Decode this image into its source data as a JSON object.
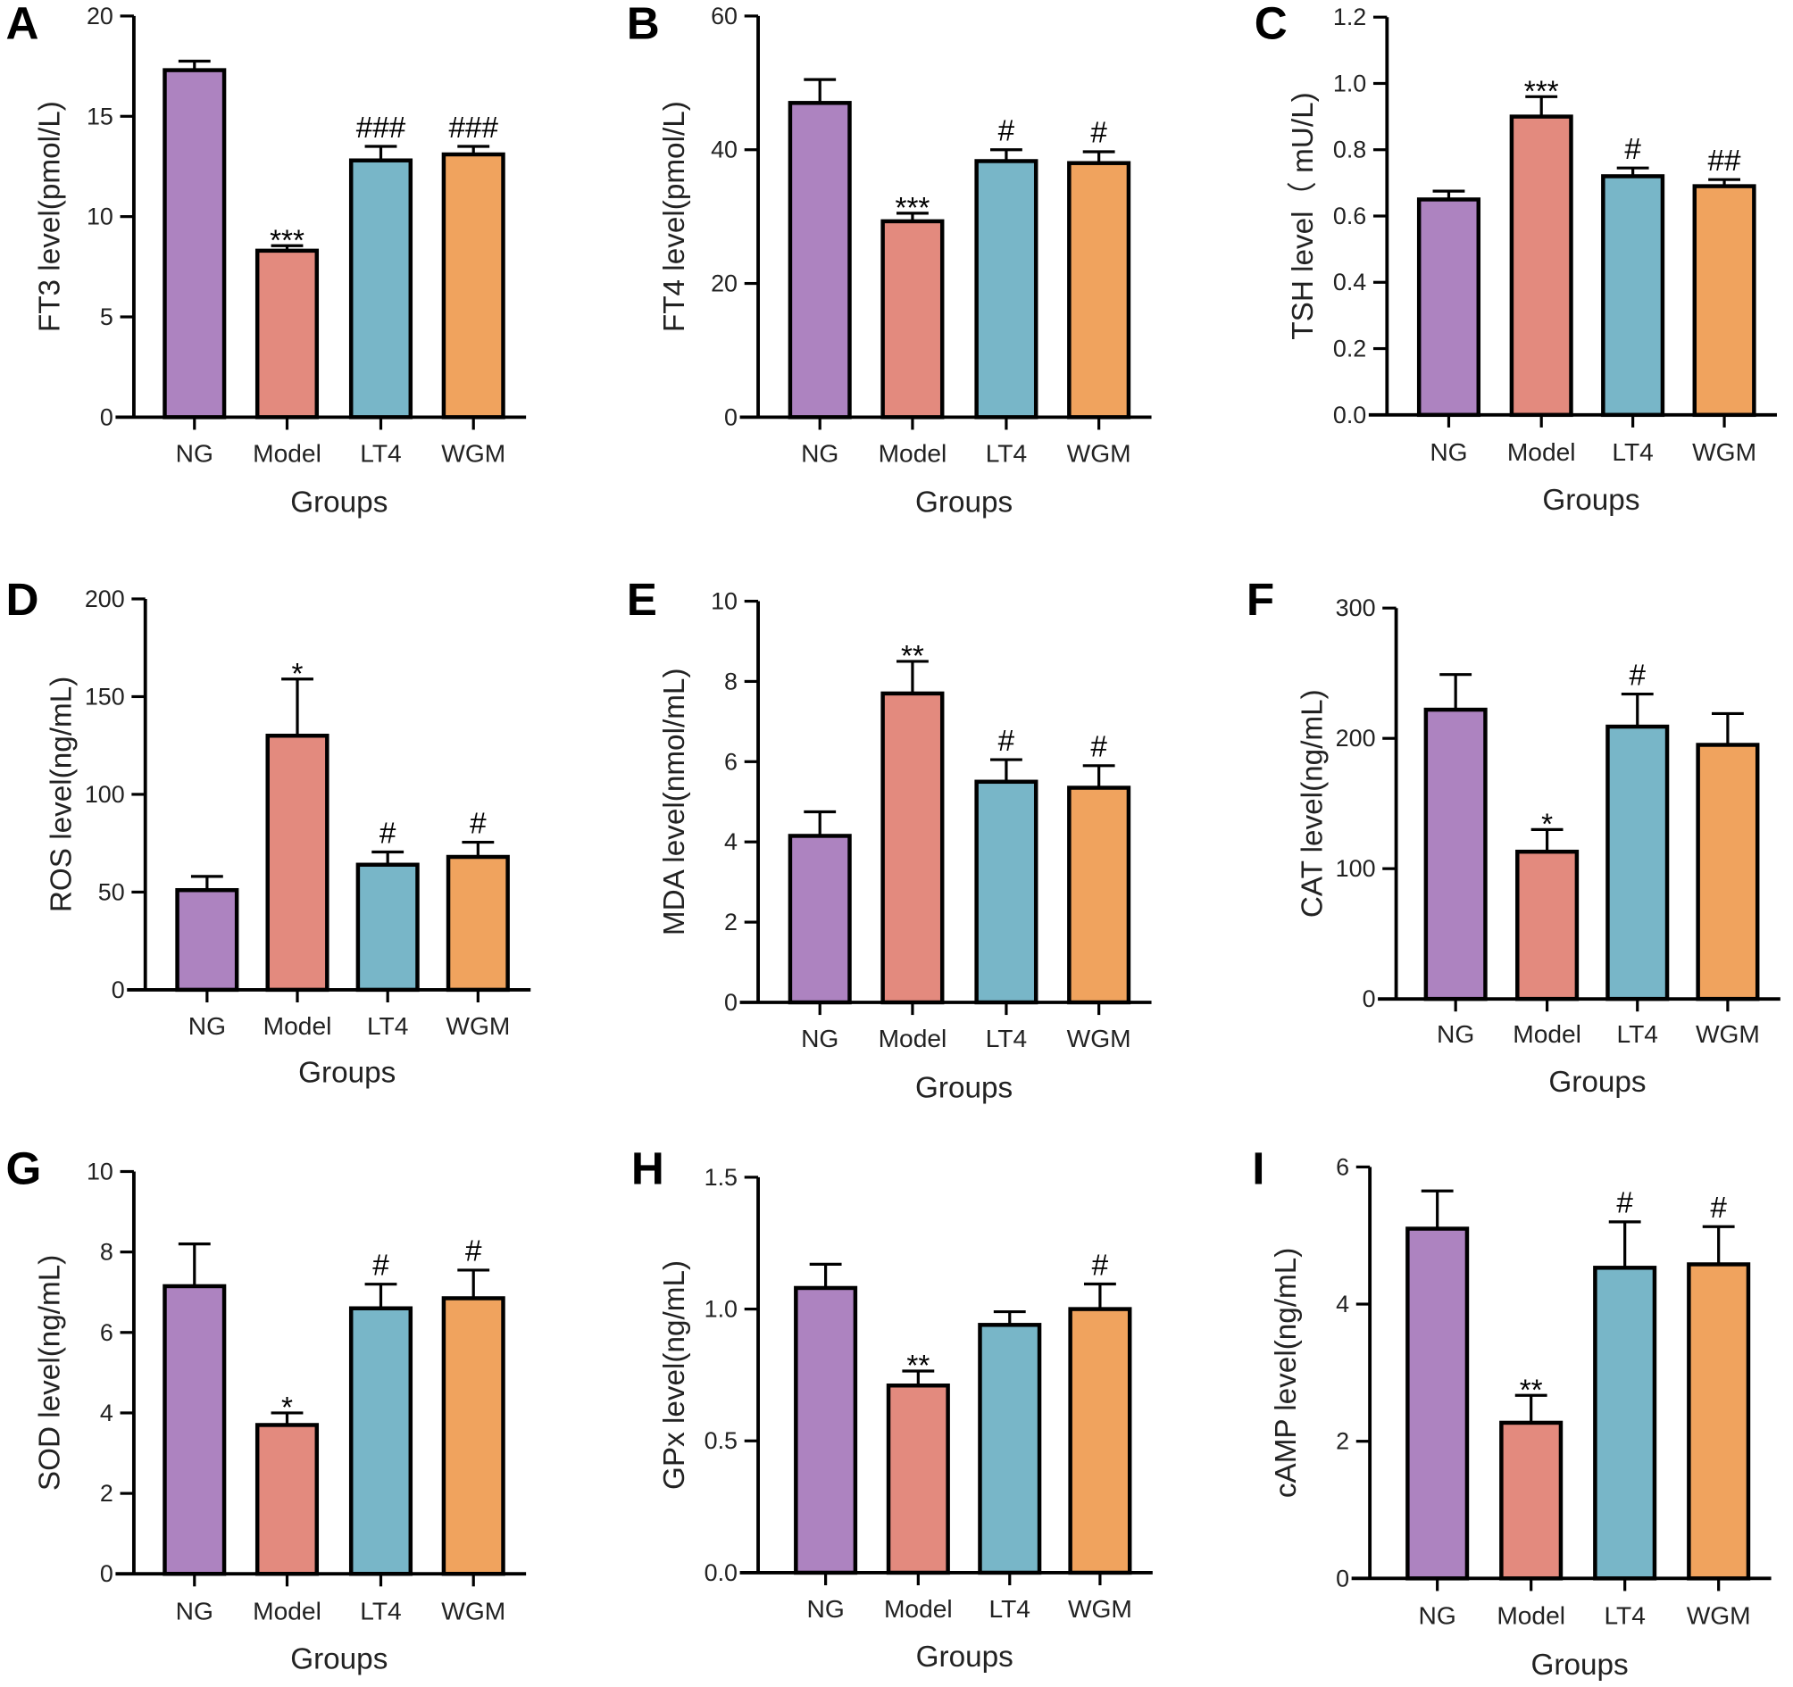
{
  "colors": {
    "NG": "#ad83c0",
    "Model": "#e38a7e",
    "LT4": "#78b6c8",
    "WGM": "#f0a35e"
  },
  "chart_data": [
    {
      "panel": "A",
      "type": "bar",
      "categories": [
        "NG",
        "Model",
        "LT4",
        "WGM"
      ],
      "values": [
        17.3,
        8.3,
        12.8,
        13.1
      ],
      "errors": [
        0.45,
        0.25,
        0.7,
        0.4
      ],
      "annotations": [
        "",
        "***",
        "###",
        "###"
      ],
      "xlabel": "Groups",
      "ylabel": "FT3 level(pmol/L)",
      "ylim": [
        0,
        20
      ],
      "yticks": [
        0,
        5,
        10,
        15,
        20
      ],
      "ytick_labels": [
        "0",
        "5",
        "10",
        "15",
        "20"
      ]
    },
    {
      "panel": "B",
      "type": "bar",
      "categories": [
        "NG",
        "Model",
        "LT4",
        "WGM"
      ],
      "values": [
        47,
        29.3,
        38.3,
        38
      ],
      "errors": [
        3.5,
        1.2,
        1.7,
        1.7
      ],
      "annotations": [
        "",
        "***",
        "#",
        "#"
      ],
      "xlabel": "Groups",
      "ylabel": "FT4 level(pmol/L)",
      "ylim": [
        0,
        60
      ],
      "yticks": [
        0,
        20,
        40,
        60
      ],
      "ytick_labels": [
        "0",
        "20",
        "40",
        "60"
      ]
    },
    {
      "panel": "C",
      "type": "bar",
      "categories": [
        "NG",
        "Model",
        "LT4",
        "WGM"
      ],
      "values": [
        0.65,
        0.9,
        0.72,
        0.69
      ],
      "errors": [
        0.025,
        0.06,
        0.025,
        0.02
      ],
      "annotations": [
        "",
        "***",
        "#",
        "##"
      ],
      "xlabel": "Groups",
      "ylabel": "TSH level（ mU/L)",
      "ylim": [
        0,
        1.2
      ],
      "yticks": [
        0,
        0.2,
        0.4,
        0.6,
        0.8,
        1.0,
        1.2
      ],
      "ytick_labels": [
        "0.0",
        "0.2",
        "0.4",
        "0.6",
        "0.8",
        "1.0",
        "1.2"
      ]
    },
    {
      "panel": "D",
      "type": "bar",
      "categories": [
        "NG",
        "Model",
        "LT4",
        "WGM"
      ],
      "values": [
        51,
        130,
        64,
        68
      ],
      "errors": [
        7,
        29,
        6.5,
        7.5
      ],
      "annotations": [
        "",
        "*",
        "#",
        "#"
      ],
      "xlabel": "Groups",
      "ylabel": "ROS level(ng/mL)",
      "ylim": [
        0,
        200
      ],
      "yticks": [
        0,
        50,
        100,
        150,
        200
      ],
      "ytick_labels": [
        "0",
        "50",
        "100",
        "150",
        "200"
      ]
    },
    {
      "panel": "E",
      "type": "bar",
      "categories": [
        "NG",
        "Model",
        "LT4",
        "WGM"
      ],
      "values": [
        4.15,
        7.7,
        5.5,
        5.35
      ],
      "errors": [
        0.6,
        0.8,
        0.55,
        0.55
      ],
      "annotations": [
        "",
        "**",
        "#",
        "#"
      ],
      "xlabel": "Groups",
      "ylabel": "MDA level(nmol/mL)",
      "ylim": [
        0,
        10
      ],
      "yticks": [
        0,
        2,
        4,
        6,
        8,
        10
      ],
      "ytick_labels": [
        "0",
        "2",
        "4",
        "6",
        "8",
        "10"
      ]
    },
    {
      "panel": "F",
      "type": "bar",
      "categories": [
        "NG",
        "Model",
        "LT4",
        "WGM"
      ],
      "values": [
        222,
        113,
        209,
        195
      ],
      "errors": [
        27,
        17,
        25,
        24
      ],
      "annotations": [
        "",
        "*",
        "#",
        ""
      ],
      "xlabel": "Groups",
      "ylabel": "CAT level(ng/mL)",
      "ylim": [
        0,
        300
      ],
      "yticks": [
        0,
        100,
        200,
        300
      ],
      "ytick_labels": [
        "0",
        "100",
        "200",
        "300"
      ]
    },
    {
      "panel": "G",
      "type": "bar",
      "categories": [
        "NG",
        "Model",
        "LT4",
        "WGM"
      ],
      "values": [
        7.15,
        3.7,
        6.6,
        6.85
      ],
      "errors": [
        1.05,
        0.3,
        0.6,
        0.7
      ],
      "annotations": [
        "",
        "*",
        "#",
        "#"
      ],
      "xlabel": "Groups",
      "ylabel": "SOD level(ng/mL)",
      "ylim": [
        0,
        10
      ],
      "yticks": [
        0,
        2,
        4,
        6,
        8,
        10
      ],
      "ytick_labels": [
        "0",
        "2",
        "4",
        "6",
        "8",
        "10"
      ]
    },
    {
      "panel": "H",
      "type": "bar",
      "categories": [
        "NG",
        "Model",
        "LT4",
        "WGM"
      ],
      "values": [
        1.08,
        0.71,
        0.94,
        1.0
      ],
      "errors": [
        0.09,
        0.055,
        0.05,
        0.095
      ],
      "annotations": [
        "",
        "**",
        "",
        "#"
      ],
      "xlabel": "Groups",
      "ylabel": "GPx level(ng/mL)",
      "ylim": [
        0,
        1.5
      ],
      "yticks": [
        0,
        0.5,
        1.0,
        1.5
      ],
      "ytick_labels": [
        "0.0",
        "0.5",
        "1.0",
        "1.5"
      ]
    },
    {
      "panel": "I",
      "type": "bar",
      "categories": [
        "NG",
        "Model",
        "LT4",
        "WGM"
      ],
      "values": [
        5.1,
        2.27,
        4.53,
        4.58
      ],
      "errors": [
        0.55,
        0.4,
        0.67,
        0.55
      ],
      "annotations": [
        "",
        "**",
        "#",
        "#"
      ],
      "xlabel": "Groups",
      "ylabel": "cAMP level(ng/mL)",
      "ylim": [
        0,
        6
      ],
      "yticks": [
        0,
        2,
        4,
        6
      ],
      "ytick_labels": [
        "0",
        "2",
        "4",
        "6"
      ]
    }
  ]
}
